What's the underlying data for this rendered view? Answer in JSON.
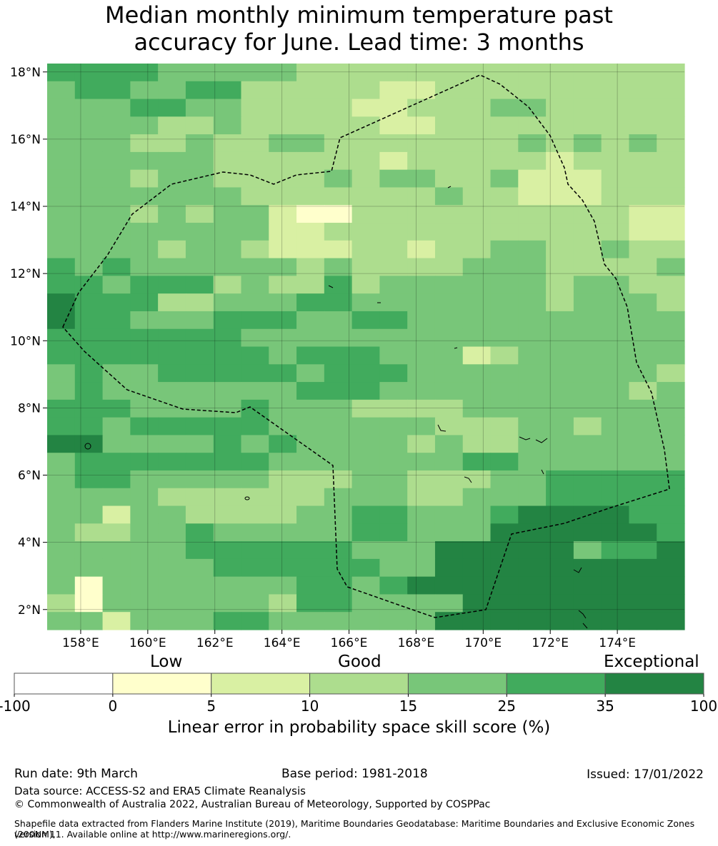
{
  "title": {
    "line1": "Median monthly minimum temperature past",
    "line2": "accuracy for June. Lead time: 3 months"
  },
  "map": {
    "lon_range": [
      157,
      176
    ],
    "lat_range": [
      1.4,
      18.25
    ],
    "x_ticks": [
      "158°E",
      "160°E",
      "162°E",
      "164°E",
      "166°E",
      "168°E",
      "170°E",
      "172°E",
      "174°E"
    ],
    "y_ticks": [
      "18°N",
      "16°N",
      "14°N",
      "12°N",
      "10°N",
      "8°N",
      "6°N",
      "4°N",
      "2°N"
    ],
    "grid_legend": "0 = white (<0%), 1 = 0–5%, 2 = 5–10%, 3 = 10–15%, 4 = 15–25%, 5 = 25–35%, 6 = 35–100%",
    "skill_grid": [
      "55554444433333333333333",
      "45544553333322333333333",
      "44455443333223334433333",
      "44443343333322333333333",
      "44433433443333333434343",
      "44444433333323333323333",
      "44434433334344334222333",
      "44444443333333433222333",
      "44434344211333333333322",
      "44444444223333333333322",
      "44443443222332334433433",
      "54544444434333344433334",
      "55455534335344444434433",
      "65553344455444444434443",
      "65544455544554444444444",
      "55555554444444444444444",
      "55555555455544423444444",
      "45445555545554444444443",
      "45444444455544444444434",
      "55544445444333344444444",
      "55455555444444333443444",
      "66444454544443433444444",
      "45555555444444455444444",
      "45544444333443334455555",
      "44443333334443344455555",
      "44244333344554445666655",
      "43344544444554446666665",
      "44444555555444666664556",
      "44444455555544666666666",
      "41444444455456666666666",
      "31444444355444466666666",
      "44244455444444666666666"
    ]
  },
  "colorbar": {
    "category_labels": [
      "Low",
      "Good",
      "Exceptional"
    ],
    "boundaries": [
      "-100",
      "0",
      "5",
      "10",
      "15",
      "25",
      "35",
      "100"
    ],
    "colors": [
      "#ffffff",
      "#ffffcc",
      "#d9f0a3",
      "#addd8e",
      "#78c679",
      "#41ab5d",
      "#238443"
    ],
    "title": "Linear error in probability space skill score (%)"
  },
  "footer": {
    "run_date": "Run date: 9th March",
    "base_period": "Base period: 1981-2018",
    "issued": "Issued: 17/01/2022",
    "data_source": "Data source: ACCESS-S2 and ERA5 Climate Reanalysis",
    "copyright": "© Commonwealth of Australia 2022, Australian Bureau of Meteorology, Supported by COSPPac",
    "shapefile_line1": "Shapefile data extracted from Flanders Marine Institute (2019), Maritime Boundaries Geodatabase: Maritime Boundaries and Exclusive Economic Zones (200NM),",
    "shapefile_line2": "version 11. Available online at http://www.marineregions.org/."
  }
}
